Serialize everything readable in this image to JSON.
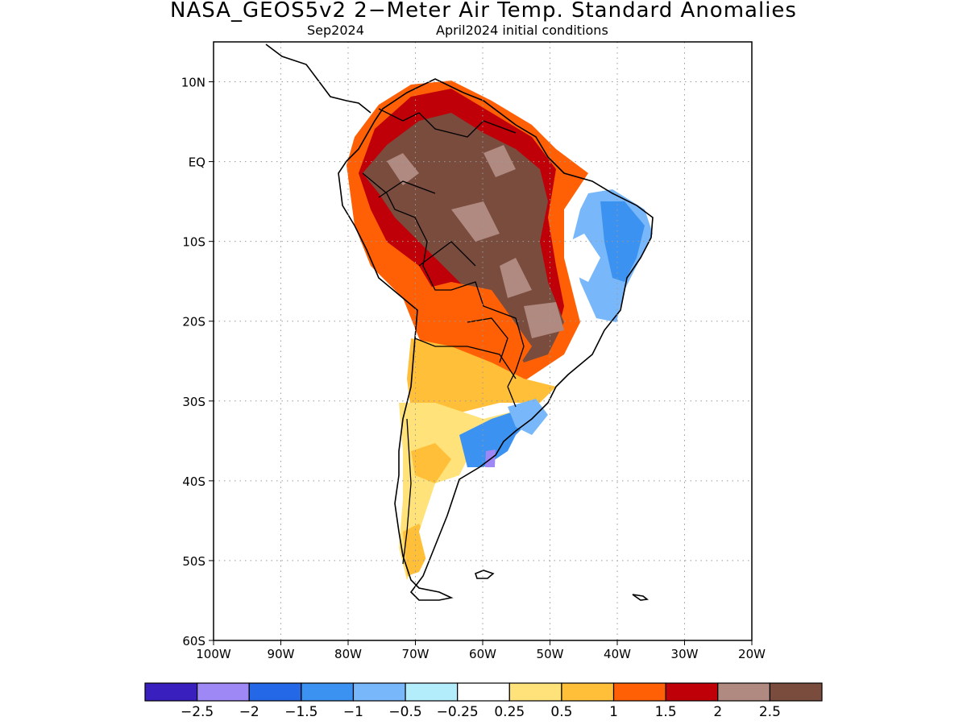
{
  "title": "NASA_GEOS5v2 2−Meter Air Temp. Standard Anomalies",
  "subtitle_left": "Sep2024",
  "subtitle_right": "April2024 initial conditions",
  "map": {
    "lon_range": [
      -100,
      -20
    ],
    "lat_range": [
      -60,
      15
    ],
    "lat_tick_labels": [
      "10N",
      "EQ",
      "10S",
      "20S",
      "30S",
      "40S",
      "50S",
      "60S"
    ],
    "lon_tick_labels": [
      "100W",
      "90W",
      "80W",
      "70W",
      "60W",
      "50W",
      "40W",
      "30W",
      "20W"
    ],
    "grid": true,
    "coastlines": "black"
  },
  "colorbar": {
    "colors": [
      "#3a1fbf",
      "#9e88f5",
      "#2468e8",
      "#3c92f0",
      "#78b7fa",
      "#b3ecfa",
      "#ffffff",
      "#ffe37a",
      "#ffbf38",
      "#ff6006",
      "#c00008",
      "#b08a80",
      "#7a4c3e"
    ],
    "labels": [
      "−2.5",
      "−2",
      "−1.5",
      "−1",
      "−0.5",
      "−0.25",
      "0.25",
      "0.5",
      "1",
      "1.5",
      "2",
      "2.5"
    ]
  }
}
